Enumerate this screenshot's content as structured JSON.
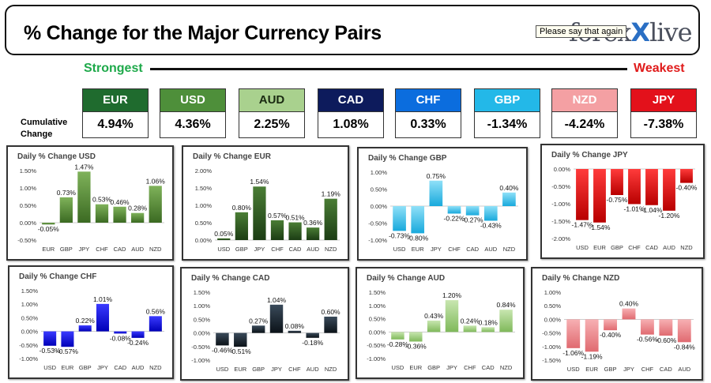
{
  "header": {
    "title": "% Change for the Major Currency Pairs",
    "logo_part1": "forex",
    "logo_x": "X",
    "logo_part2": "live",
    "tooltip": "Please say that again"
  },
  "scale": {
    "strongest": "Strongest",
    "weakest": "Weakest",
    "cumulative_label": "Cumulative Change"
  },
  "currencies": [
    {
      "code": "EUR",
      "value": "4.94%",
      "color": "#1f6b2e"
    },
    {
      "code": "USD",
      "value": "4.36%",
      "color": "#4e8f3a"
    },
    {
      "code": "AUD",
      "value": "2.25%",
      "color": "#a9d18e"
    },
    {
      "code": "CAD",
      "value": "1.08%",
      "color": "#0d1b5c"
    },
    {
      "code": "CHF",
      "value": "0.33%",
      "color": "#0b6dde"
    },
    {
      "code": "GBP",
      "value": "-1.34%",
      "color": "#23b8e8"
    },
    {
      "code": "NZD",
      "value": "-4.24%",
      "color": "#f4a0a3"
    },
    {
      "code": "JPY",
      "value": "-7.38%",
      "color": "#e3111b"
    }
  ],
  "chart_data": [
    {
      "type": "bar",
      "title": "Daily % Change USD",
      "categories": [
        "EUR",
        "GBP",
        "JPY",
        "CHF",
        "CAD",
        "AUD",
        "NZD"
      ],
      "values": [
        -0.05,
        0.73,
        1.47,
        0.53,
        0.46,
        0.28,
        1.06
      ],
      "labels": [
        "-0.05%",
        "0.73%",
        "1.47%",
        "0.53%",
        "0.46%",
        "0.28%",
        "1.06%"
      ],
      "ticks": [
        "-0.50%",
        "0.00%",
        "0.50%",
        "1.00%",
        "1.50%"
      ],
      "ylim": [
        -0.5,
        1.5
      ],
      "color_top": "#7fb25a",
      "color_bottom": "#3b6a22"
    },
    {
      "type": "bar",
      "title": "Daily % Change EUR",
      "categories": [
        "USD",
        "GBP",
        "JPY",
        "CHF",
        "CAD",
        "AUD",
        "NZD"
      ],
      "values": [
        0.05,
        0.8,
        1.54,
        0.57,
        0.51,
        0.36,
        1.19
      ],
      "labels": [
        "0.05%",
        "0.80%",
        "1.54%",
        "0.57%",
        "0.51%",
        "0.36%",
        "1.19%"
      ],
      "ticks": [
        "0.00%",
        "0.50%",
        "1.00%",
        "1.50%",
        "2.00%"
      ],
      "ylim": [
        0,
        2.0
      ],
      "color_top": "#4a7d35",
      "color_bottom": "#1c3d14"
    },
    {
      "type": "bar",
      "title": "Daily % Change GBP",
      "categories": [
        "USD",
        "EUR",
        "JPY",
        "CHF",
        "CAD",
        "AUD",
        "NZD"
      ],
      "values": [
        -0.73,
        -0.8,
        0.75,
        -0.22,
        -0.27,
        -0.43,
        0.4
      ],
      "labels": [
        "-0.73%",
        "-0.80%",
        "0.75%",
        "-0.22%",
        "-0.27%",
        "-0.43%",
        "0.40%"
      ],
      "ticks": [
        "-1.00%",
        "-0.50%",
        "0.00%",
        "0.50%",
        "1.00%"
      ],
      "ylim": [
        -1.0,
        1.0
      ],
      "color_top": "#8fe0f8",
      "color_bottom": "#18a9dc"
    },
    {
      "type": "bar",
      "title": "Daily % Change JPY",
      "categories": [
        "USD",
        "EUR",
        "GBP",
        "CHF",
        "CAD",
        "AUD",
        "NZD"
      ],
      "values": [
        -1.47,
        -1.54,
        -0.75,
        -1.01,
        -1.04,
        -1.2,
        -0.4
      ],
      "labels": [
        "-1.47%",
        "-1.54%",
        "-0.75%",
        "-1.01%",
        "-1.04%",
        "-1.20%",
        "-0.40%"
      ],
      "ticks": [
        "-2.00%",
        "-1.50%",
        "-1.00%",
        "-0.50%",
        "0.00%"
      ],
      "ylim": [
        -2.0,
        0
      ],
      "color_top": "#ff3b3b",
      "color_bottom": "#b80000"
    },
    {
      "type": "bar",
      "title": "Daily % Change CHF",
      "categories": [
        "USD",
        "EUR",
        "GBP",
        "JPY",
        "CAD",
        "AUD",
        "NZD"
      ],
      "values": [
        -0.53,
        -0.57,
        0.22,
        1.01,
        -0.08,
        -0.24,
        0.56
      ],
      "labels": [
        "-0.53%",
        "-0.57%",
        "0.22%",
        "1.01%",
        "-0.08%",
        "-0.24%",
        "0.56%"
      ],
      "ticks": [
        "-1.00%",
        "-0.50%",
        "0.00%",
        "0.50%",
        "1.00%",
        "1.50%"
      ],
      "ylim": [
        -1.0,
        1.5
      ],
      "color_top": "#3a3aff",
      "color_bottom": "#0000b8"
    },
    {
      "type": "bar",
      "title": "Daily % Change CAD",
      "categories": [
        "USD",
        "EUR",
        "GBP",
        "JPY",
        "CHF",
        "AUD",
        "NZD"
      ],
      "values": [
        -0.46,
        -0.51,
        0.27,
        1.04,
        0.08,
        -0.18,
        0.6
      ],
      "labels": [
        "-0.46%",
        "-0.51%",
        "0.27%",
        "1.04%",
        "0.08%",
        "-0.18%",
        "0.60%"
      ],
      "ticks": [
        "-1.00%",
        "-0.50%",
        "0.00%",
        "0.50%",
        "1.00%",
        "1.50%"
      ],
      "ylim": [
        -1.0,
        1.5
      ],
      "color_top": "#3a4a5a",
      "color_bottom": "#0b1218"
    },
    {
      "type": "bar",
      "title": "Daily % Change AUD",
      "categories": [
        "USD",
        "EUR",
        "GBP",
        "JPY",
        "CHF",
        "CAD",
        "NZD"
      ],
      "values": [
        -0.28,
        -0.36,
        0.43,
        1.2,
        0.24,
        0.18,
        0.84
      ],
      "labels": [
        "-0.28%",
        "-0.36%",
        "0.43%",
        "1.20%",
        "0.24%",
        "0.18%",
        "0.84%"
      ],
      "ticks": [
        "-1.00%",
        "-0.50%",
        "0.00%",
        "0.50%",
        "1.00%",
        "1.50%"
      ],
      "ylim": [
        -1.0,
        1.5
      ],
      "color_top": "#c8e6b0",
      "color_bottom": "#7fb95a"
    },
    {
      "type": "bar",
      "title": "Daily % Change NZD",
      "categories": [
        "USD",
        "EUR",
        "GBP",
        "JPY",
        "CHF",
        "CAD",
        "AUD"
      ],
      "values": [
        -1.06,
        -1.19,
        -0.4,
        0.4,
        -0.56,
        -0.6,
        -0.84
      ],
      "labels": [
        "-1.06%",
        "-1.19%",
        "-0.40%",
        "0.40%",
        "-0.56%",
        "-0.60%",
        "-0.84%"
      ],
      "ticks": [
        "-1.50%",
        "-1.00%",
        "-0.50%",
        "0.00%",
        "0.50%",
        "1.00%"
      ],
      "ylim": [
        -1.5,
        1.0
      ],
      "color_top": "#f7b0b3",
      "color_bottom": "#e06a70"
    }
  ]
}
